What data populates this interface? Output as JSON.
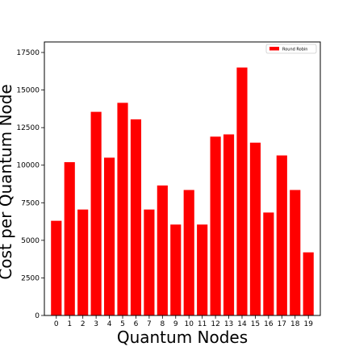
{
  "chart_data": {
    "type": "bar",
    "categories": [
      "0",
      "1",
      "2",
      "3",
      "4",
      "5",
      "6",
      "7",
      "8",
      "9",
      "10",
      "11",
      "12",
      "13",
      "14",
      "15",
      "16",
      "17",
      "18",
      "19"
    ],
    "series": [
      {
        "name": "Round Robin",
        "color": "#ff0000",
        "values": [
          6300,
          10200,
          7050,
          13550,
          10500,
          14150,
          13050,
          7050,
          8650,
          6050,
          8350,
          6050,
          11900,
          12050,
          16500,
          11500,
          6850,
          10650,
          8350,
          4200
        ]
      }
    ],
    "xlabel": "Quantum Nodes",
    "ylabel": "Cost per Quantum Node",
    "ylim": [
      0,
      18200
    ],
    "yticks": [
      0,
      2500,
      5000,
      7500,
      10000,
      12500,
      15000,
      17500
    ],
    "ytick_labels": [
      "0",
      "2500",
      "5000",
      "7500",
      "10000",
      "12500",
      "15000",
      "17500"
    ],
    "grid": false,
    "legend_position": "top-right"
  }
}
